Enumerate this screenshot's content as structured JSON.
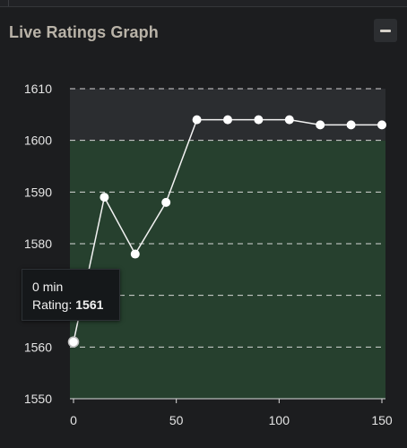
{
  "panel": {
    "title": "Live Ratings Graph",
    "collapse_icon": "minus-icon"
  },
  "tooltip": {
    "time_value": "0",
    "time_unit": "min",
    "rating_label": "Rating:",
    "rating_value": "1561"
  },
  "colors": {
    "background": "#1c1d1f",
    "upper_band": "#2b2d30",
    "lower_band": "#26402e",
    "line": "#f2f2f2",
    "point_fill": "#ffffff",
    "grid": "#e8e8e8"
  },
  "chart_data": {
    "type": "line",
    "title": "",
    "xlabel": "",
    "ylabel": "",
    "x": [
      0,
      15,
      30,
      45,
      60,
      75,
      90,
      105,
      120,
      135,
      150
    ],
    "series": [
      {
        "values": [
          1561,
          1589,
          1578,
          1588,
          1604,
          1604,
          1604,
          1604,
          1603,
          1603,
          1603
        ]
      }
    ],
    "xlim": [
      0,
      150
    ],
    "ylim": [
      1550,
      1610
    ],
    "x_ticks": [
      0,
      50,
      100,
      150
    ],
    "y_ticks": [
      1550,
      1560,
      1570,
      1580,
      1590,
      1600,
      1610
    ],
    "y_tick_labels": [
      "1550",
      "1560",
      "",
      "1580",
      "1590",
      "1600",
      "1610"
    ],
    "bands": [
      {
        "from": 1550,
        "to": 1600,
        "color": "#26402e"
      },
      {
        "from": 1600,
        "to": 1610,
        "color": "#2b2d30"
      }
    ],
    "grid": true,
    "legend": "none",
    "highlighted_point": {
      "x": 0,
      "y": 1561
    }
  }
}
